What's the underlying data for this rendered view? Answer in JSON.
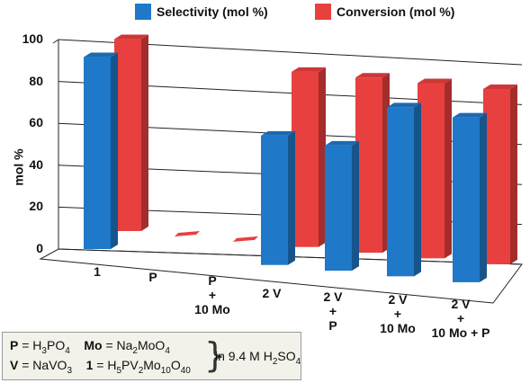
{
  "chart_data": {
    "type": "bar",
    "ylabel": "mol %",
    "ylim": [
      0,
      100
    ],
    "yticks": [
      "0",
      "20",
      "40",
      "60",
      "80",
      "100"
    ],
    "categories": [
      [
        "1"
      ],
      [
        "P"
      ],
      [
        "P",
        "+",
        "10 Mo"
      ],
      [
        "2 V"
      ],
      [
        "2 V",
        "+",
        "P"
      ],
      [
        "2 V",
        "+",
        "10 Mo"
      ],
      [
        "2 V",
        "+",
        "10 Mo + P"
      ]
    ],
    "series": [
      {
        "name": "Selectivity (mol %)",
        "color": "#1f78c8",
        "values": [
          92,
          0,
          0,
          62,
          60,
          81,
          79
        ]
      },
      {
        "name": "Conversion (mol %)",
        "color": "#e8403f",
        "values": [
          92,
          1,
          1,
          84,
          84,
          84,
          84
        ]
      }
    ],
    "legend_position": "top",
    "grid": true
  },
  "note": {
    "p_label": "P",
    "p_formula": "H3PO4",
    "mo_label": "Mo",
    "mo_formula": "Na2MoO4",
    "v_label": "V",
    "v_formula": "NaVO3",
    "one_label": "1",
    "one_formula": "H5PV2Mo10O40",
    "condition": "in 9.4 M H2SO4"
  }
}
